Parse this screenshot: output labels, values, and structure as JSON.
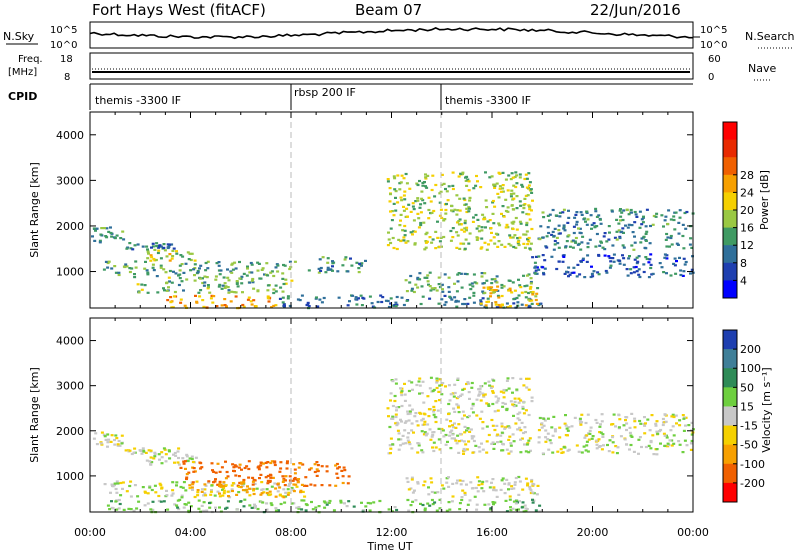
{
  "header": {
    "title": "Fort Hays West (fitACF)",
    "beam": "Beam 07",
    "date": "22/Jun/2016"
  },
  "panels": {
    "nsky": {
      "label": "N.Sky",
      "right_label": "N.Search",
      "ticks_left": [
        "10^5",
        "10^0"
      ],
      "ticks_right": [
        "10^5",
        "10^0"
      ]
    },
    "freq": {
      "label_top": "Freq.",
      "label_unit": "[MHz]",
      "right_label": "Nave",
      "ticks_left": [
        "18",
        "8"
      ],
      "ticks_right": [
        "60",
        "0"
      ]
    },
    "cpid": {
      "label": "CPID",
      "segments": [
        "themis -3300 IF",
        "rbsp 200 IF",
        "themis -3300 IF"
      ]
    }
  },
  "xaxis": {
    "label": "Time UT",
    "ticks": [
      "00:00",
      "04:00",
      "08:00",
      "12:00",
      "16:00",
      "20:00",
      "00:00"
    ]
  },
  "chart_data": [
    {
      "type": "heatmap",
      "name": "power",
      "ylabel": "Slant Range [km]",
      "xlabel": "",
      "yticks": [
        1000,
        2000,
        3000,
        4000
      ],
      "ylim": [
        200,
        4500
      ],
      "xlim_hours": [
        0,
        24
      ],
      "colorbar": {
        "label": "Power [dB]",
        "ticks": [
          4,
          8,
          12,
          16,
          20,
          24,
          28
        ],
        "colors": [
          "#0000ff",
          "#1e3fb0",
          "#2f6f9a",
          "#3f9a63",
          "#9ac843",
          "#f5d000",
          "#f7a000",
          "#f06000",
          "#e82a00",
          "#ff0000"
        ]
      },
      "bands": [
        {
          "t": [
            0.0,
            1.3
          ],
          "r": [
            1650,
            2000
          ],
          "v": 12
        },
        {
          "t": [
            1.3,
            3.5
          ],
          "r": [
            1500,
            1650
          ],
          "v": 10
        },
        {
          "t": [
            2.2,
            4.3
          ],
          "r": [
            1250,
            1500
          ],
          "v": 20
        },
        {
          "t": [
            0.5,
            8.2
          ],
          "r": [
            900,
            1250
          ],
          "v": 14
        },
        {
          "t": [
            1.8,
            8.0
          ],
          "r": [
            550,
            900
          ],
          "v": 16
        },
        {
          "t": [
            8.5,
            11.0
          ],
          "r": [
            1000,
            1350
          ],
          "v": 12
        },
        {
          "t": [
            3.0,
            7.5
          ],
          "r": [
            220,
            500
          ],
          "v": 26
        },
        {
          "t": [
            7.5,
            18.0
          ],
          "r": [
            220,
            500
          ],
          "v": 10
        },
        {
          "t": [
            11.8,
            17.6
          ],
          "r": [
            1500,
            3200
          ],
          "v": 18
        },
        {
          "t": [
            12.5,
            17.8
          ],
          "r": [
            550,
            1000
          ],
          "v": 14
        },
        {
          "t": [
            15.5,
            17.8
          ],
          "r": [
            220,
            700
          ],
          "v": 24
        },
        {
          "t": [
            17.8,
            24.0
          ],
          "r": [
            1500,
            2400
          ],
          "v": 12
        },
        {
          "t": [
            17.5,
            24.0
          ],
          "r": [
            900,
            1400
          ],
          "v": 8
        }
      ]
    },
    {
      "type": "heatmap",
      "name": "velocity",
      "ylabel": "Slant Range [km]",
      "xlabel": "Time UT",
      "yticks": [
        1000,
        2000,
        3000,
        4000
      ],
      "ylim": [
        200,
        4500
      ],
      "xlim_hours": [
        0,
        24
      ],
      "colorbar": {
        "label": "Velocity [m s⁻¹]",
        "ticks": [
          200,
          100,
          50,
          15,
          -15,
          -50,
          -100,
          -200
        ],
        "colors": [
          "#1e3fb0",
          "#3f7f98",
          "#2e8b57",
          "#6ecf3f",
          "#c8c8c8",
          "#f5d000",
          "#f7a000",
          "#f06000",
          "#ff0000"
        ]
      },
      "bands": [
        {
          "t": [
            0.0,
            1.3
          ],
          "r": [
            1650,
            2000
          ],
          "v": 0
        },
        {
          "t": [
            1.3,
            3.5
          ],
          "r": [
            1500,
            1650
          ],
          "v": 0
        },
        {
          "t": [
            2.2,
            4.3
          ],
          "r": [
            1250,
            1500
          ],
          "v": 0
        },
        {
          "t": [
            0.5,
            8.2
          ],
          "r": [
            550,
            900
          ],
          "v": 0
        },
        {
          "t": [
            3.5,
            10.5
          ],
          "r": [
            800,
            1350
          ],
          "v": -120
        },
        {
          "t": [
            4.0,
            8.5
          ],
          "r": [
            550,
            900
          ],
          "v": -60
        },
        {
          "t": [
            0.5,
            18.0
          ],
          "r": [
            220,
            500
          ],
          "v": 30
        },
        {
          "t": [
            11.8,
            17.6
          ],
          "r": [
            1500,
            3200
          ],
          "v": 0
        },
        {
          "t": [
            12.5,
            17.8
          ],
          "r": [
            550,
            1000
          ],
          "v": 0
        },
        {
          "t": [
            17.8,
            24.0
          ],
          "r": [
            1500,
            2400
          ],
          "v": 0
        }
      ]
    }
  ]
}
